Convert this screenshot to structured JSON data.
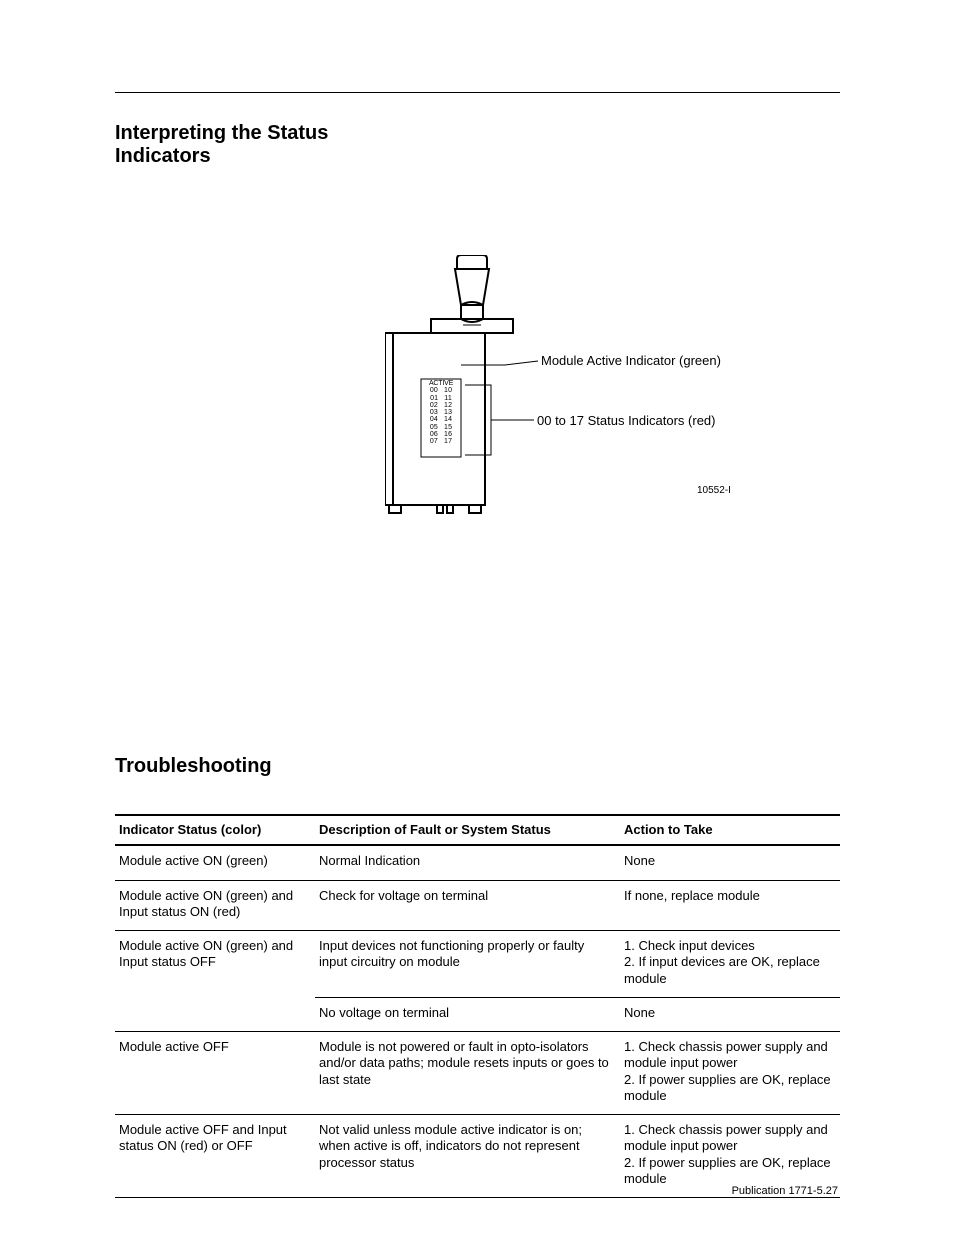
{
  "rule_color": "#000000",
  "headings": {
    "status": "Interpreting the Status Indicators",
    "troubleshooting": "Troubleshooting"
  },
  "diagram": {
    "callout_active": "Module Active Indicator (green)",
    "callout_status": "00 to 17 Status Indicators (red)",
    "led_active_label": "ACTIVE",
    "led_rows": [
      [
        "00",
        "10"
      ],
      [
        "01",
        "11"
      ],
      [
        "02",
        "12"
      ],
      [
        "03",
        "13"
      ],
      [
        "04",
        "14"
      ],
      [
        "05",
        "15"
      ],
      [
        "06",
        "16"
      ],
      [
        "07",
        "17"
      ]
    ],
    "figure_id": "10552-I"
  },
  "table": {
    "headers": {
      "col1": "Indicator Status (color)",
      "col2": "Description of Fault or System Status",
      "col3": "Action to Take"
    },
    "rows": [
      {
        "status": "Module active ON (green)",
        "desc": "Normal Indication",
        "action": "None",
        "rowspan_status": 1
      },
      {
        "status": "Module active ON (green) and Input status ON (red)",
        "desc": "Check for voltage on terminal",
        "action": "If none, replace module",
        "rowspan_status": 1
      },
      {
        "status": "Module active ON (green) and Input status OFF",
        "desc": "Input devices not functioning properly or faulty input circuitry on module",
        "action": "1. Check input devices\n2. If input devices are OK, replace module",
        "rowspan_status": 2
      },
      {
        "status": "",
        "desc": "No voltage on terminal",
        "action": "None",
        "rowspan_status": 0
      },
      {
        "status": "Module active OFF",
        "desc": "Module is not powered or fault  in opto-isolators and/or data paths; module resets inputs or goes to last state",
        "action": "1. Check chassis power supply and module input power\n2. If power supplies are OK, replace module",
        "rowspan_status": 1
      },
      {
        "status": "Module active OFF and Input status ON (red) or OFF",
        "desc": "Not valid unless module active indicator is on; when active is off, indicators do not represent processor status",
        "action": "1. Check chassis power supply and module input power\n2. If power supplies are OK, replace module",
        "rowspan_status": 1
      }
    ]
  },
  "publication": "Publication 1771-5.27"
}
